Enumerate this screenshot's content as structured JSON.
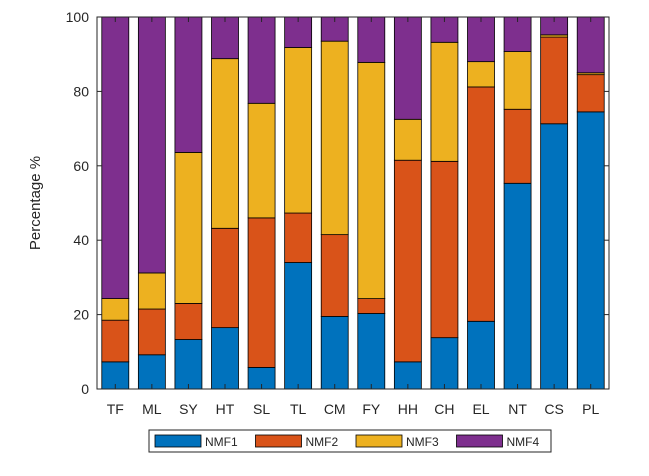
{
  "chart_data": {
    "type": "bar",
    "stacked": true,
    "title": "",
    "xlabel": "",
    "ylabel": "Percentage %",
    "ylim": [
      0,
      100
    ],
    "yticks": [
      0,
      20,
      40,
      60,
      80,
      100
    ],
    "grid": false,
    "legend_position": "bottom",
    "categories": [
      "TF",
      "ML",
      "SY",
      "HT",
      "SL",
      "TL",
      "CM",
      "FY",
      "HH",
      "CH",
      "EL",
      "NT",
      "CS",
      "PL"
    ],
    "series": [
      {
        "name": "NMF1",
        "color": "#0072BD",
        "values": [
          7.3,
          9.2,
          13.3,
          16.5,
          5.8,
          34.0,
          19.5,
          20.3,
          7.3,
          13.8,
          18.2,
          55.3,
          71.3,
          74.5
        ]
      },
      {
        "name": "NMF2",
        "color": "#D95319",
        "values": [
          11.2,
          12.3,
          9.7,
          26.7,
          40.2,
          13.3,
          22.0,
          4.0,
          54.2,
          47.4,
          63.0,
          19.9,
          23.3,
          10.0
        ]
      },
      {
        "name": "NMF3",
        "color": "#EDB120",
        "values": [
          5.8,
          9.7,
          40.6,
          45.6,
          30.8,
          44.5,
          52.0,
          63.5,
          11.0,
          32.0,
          6.8,
          15.5,
          0.6,
          0.5
        ]
      },
      {
        "name": "NMF4",
        "color": "#7E2F8E",
        "values": [
          75.7,
          68.8,
          36.4,
          11.2,
          23.2,
          8.2,
          6.5,
          12.2,
          27.5,
          6.8,
          12.0,
          9.3,
          4.8,
          15.0
        ]
      }
    ]
  }
}
